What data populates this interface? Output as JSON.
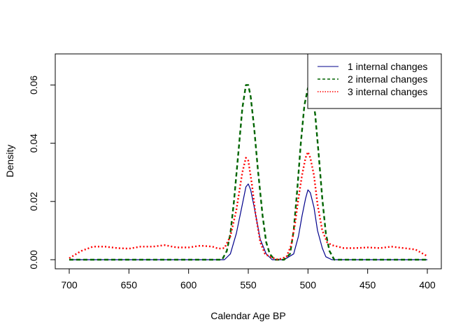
{
  "chart_data": {
    "type": "line",
    "title": "",
    "xlabel": "Calendar Age BP",
    "ylabel": "Density",
    "xlim": [
      700,
      400
    ],
    "ylim": [
      0,
      0.075
    ],
    "x_reversed": true,
    "x_ticks": [
      700,
      650,
      600,
      550,
      500,
      450,
      400
    ],
    "x_tick_labels": [
      "700",
      "650",
      "600",
      "550",
      "500",
      "450",
      "400"
    ],
    "y_ticks": [
      0,
      0.02,
      0.04,
      0.06
    ],
    "y_tick_labels": [
      "0.00",
      "0.02",
      "0.04",
      "0.06"
    ],
    "grid": false,
    "legend_position": "top-right",
    "series": [
      {
        "name": "1 internal changes",
        "color": "#00008B",
        "dash": "solid",
        "x": [
          700,
          570,
          565,
          560,
          555,
          552,
          550,
          548,
          545,
          540,
          535,
          530,
          520,
          512,
          508,
          505,
          502,
          500,
          498,
          495,
          492,
          488,
          485,
          480,
          400
        ],
        "y": [
          0,
          0,
          0.002,
          0.009,
          0.019,
          0.025,
          0.026,
          0.024,
          0.018,
          0.007,
          0.002,
          0,
          0,
          0.002,
          0.008,
          0.015,
          0.021,
          0.024,
          0.023,
          0.018,
          0.01,
          0.004,
          0.001,
          0,
          0
        ]
      },
      {
        "name": "2 internal changes",
        "color": "#006400",
        "dash": "dashed",
        "x": [
          700,
          572,
          568,
          565,
          562,
          558,
          555,
          552,
          550,
          548,
          545,
          542,
          538,
          535,
          532,
          528,
          520,
          515,
          512,
          509,
          506,
          503,
          500,
          497,
          494,
          491,
          488,
          485,
          482,
          478,
          400
        ],
        "y": [
          0,
          0,
          0.003,
          0.009,
          0.02,
          0.038,
          0.052,
          0.06,
          0.06,
          0.056,
          0.045,
          0.031,
          0.015,
          0.006,
          0.002,
          0,
          0,
          0.002,
          0.01,
          0.024,
          0.04,
          0.053,
          0.059,
          0.058,
          0.05,
          0.036,
          0.021,
          0.009,
          0.003,
          0,
          0
        ]
      },
      {
        "name": "3 internal changes",
        "color": "#FF0000",
        "dash": "dotted",
        "x": [
          700,
          690,
          680,
          670,
          660,
          650,
          640,
          630,
          620,
          610,
          600,
          590,
          580,
          575,
          570,
          565,
          560,
          555,
          552,
          550,
          547,
          544,
          540,
          536,
          532,
          525,
          518,
          514,
          511,
          508,
          505,
          502,
          500,
          498,
          495,
          492,
          488,
          484,
          480,
          475,
          470,
          460,
          450,
          440,
          430,
          420,
          410,
          400
        ],
        "y": [
          0.0005,
          0.003,
          0.0045,
          0.0045,
          0.004,
          0.0038,
          0.0045,
          0.0045,
          0.005,
          0.0042,
          0.0042,
          0.0048,
          0.0045,
          0.0038,
          0.004,
          0.008,
          0.017,
          0.03,
          0.035,
          0.034,
          0.026,
          0.016,
          0.006,
          0.002,
          0.001,
          0,
          0.001,
          0.005,
          0.012,
          0.021,
          0.029,
          0.035,
          0.037,
          0.035,
          0.029,
          0.019,
          0.01,
          0.006,
          0.005,
          0.0045,
          0.004,
          0.004,
          0.0042,
          0.004,
          0.0045,
          0.004,
          0.0035,
          0.0012
        ]
      }
    ]
  }
}
